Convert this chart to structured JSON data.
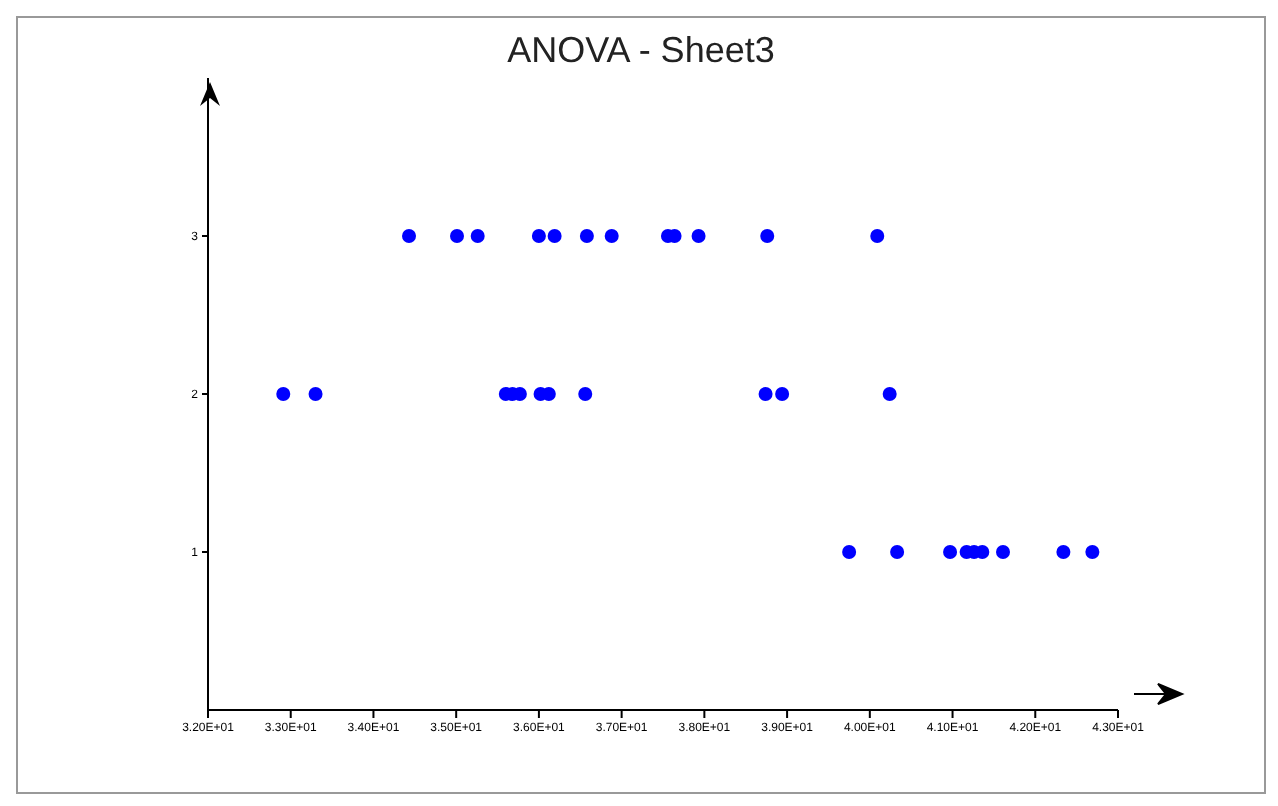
{
  "chart_data": {
    "type": "scatter",
    "title": "ANOVA - Sheet3",
    "x": [
      34.43,
      35.01,
      35.26,
      36.0,
      36.19,
      36.58,
      36.88,
      37.56,
      37.64,
      37.93,
      38.76,
      40.09,
      32.91,
      33.3,
      35.6,
      35.68,
      35.77,
      36.02,
      36.12,
      36.56,
      38.74,
      38.94,
      40.24,
      39.75,
      40.33,
      40.97,
      41.17,
      41.26,
      41.36,
      41.61,
      42.34,
      42.69
    ],
    "values": [
      3,
      3,
      3,
      3,
      3,
      3,
      3,
      3,
      3,
      3,
      3,
      3,
      2,
      2,
      2,
      2,
      2,
      2,
      2,
      2,
      2,
      2,
      2,
      1,
      1,
      1,
      1,
      1,
      1,
      1,
      1,
      1
    ],
    "color": "#0000ff",
    "grid": false,
    "xlim": [
      32,
      43
    ],
    "xticks": [
      {
        "value": 32,
        "label": "3.20E+01"
      },
      {
        "value": 33,
        "label": "3.30E+01"
      },
      {
        "value": 34,
        "label": "3.40E+01"
      },
      {
        "value": 35,
        "label": "3.50E+01"
      },
      {
        "value": 36,
        "label": "3.60E+01"
      },
      {
        "value": 37,
        "label": "3.70E+01"
      },
      {
        "value": 38,
        "label": "3.80E+01"
      },
      {
        "value": 39,
        "label": "3.90E+01"
      },
      {
        "value": 40,
        "label": "4.00E+01"
      },
      {
        "value": 41,
        "label": "4.10E+01"
      },
      {
        "value": 42,
        "label": "4.20E+01"
      },
      {
        "value": 43,
        "label": "4.30E+01"
      }
    ],
    "ylim": [
      0,
      4
    ],
    "yticks": [
      1,
      2,
      3
    ]
  }
}
